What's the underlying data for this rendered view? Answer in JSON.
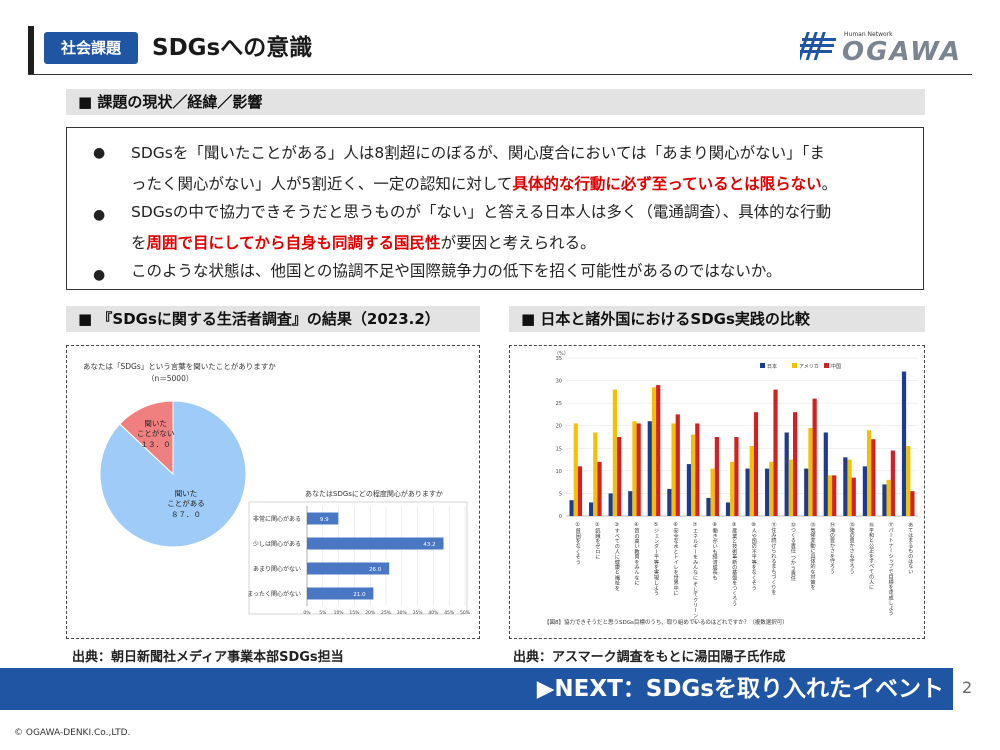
{
  "header": {
    "tag": "社会課題",
    "title": "SDGsへの意識",
    "logo_small": "Human Network",
    "logo_text": "OGAWA"
  },
  "section1": {
    "label": "■ 課題の現状／経緯／影響"
  },
  "bullets": [
    {
      "line1": "SDGsを「聞いたことがある」人は8割超にのぼるが、関心度合においては「あまり関心がない」「ま",
      "line2_pre": "ったく関心がない」人が5割近く、一定の認知に対して",
      "line2_red": "具体的な行動に必ず至っているとは限らない",
      "line2_post": "。"
    },
    {
      "line1": "SDGsの中で協力できそうだと思うものが「ない」と答える日本人は多く（電通調査）、具体的な行動",
      "line2_pre": "を",
      "line2_red": "周囲で目にしてから自身も同調する国民性",
      "line2_post": "が要因と考えられる。"
    },
    {
      "line1": "このような状態は、他国との協調不足や国際競争力の低下を招く可能性があるのではないか。"
    }
  ],
  "bullet_symbol": "●",
  "section2": {
    "label": "■ 『SDGsに関する生活者調査』の結果（2023.2）"
  },
  "section3": {
    "label": "■ 日本と諸外国におけるSDGs実践の比較"
  },
  "chart_data": [
    {
      "type": "pie",
      "title": "あなたは「SDGs」という言葉を聞いたことがありますか",
      "subtitle": "（n＝5000）",
      "slices": [
        {
          "label_line1": "聞いた",
          "label_line2": "ことがある",
          "value": 87.0,
          "value_label": "８７．０",
          "color": "#9ecbf7"
        },
        {
          "label_line1": "聞いた",
          "label_line2": "ことがない",
          "value": 13.0,
          "value_label": "１３．０",
          "color": "#f08080"
        }
      ]
    },
    {
      "type": "bar",
      "orientation": "horizontal",
      "title": "あなたはSDGsにどの程度関心がありますか",
      "categories": [
        "非常に関心がある",
        "少しは関心がある",
        "あまり関心がない",
        "まったく関心がない"
      ],
      "values": [
        9.9,
        43.2,
        26.0,
        21.0
      ],
      "value_labels": [
        "9.9",
        "43.2",
        "26.0",
        "21.0"
      ],
      "xlim": [
        0,
        50
      ],
      "ticks": [
        "0%",
        "5%",
        "10%",
        "15%",
        "20%",
        "25%",
        "30%",
        "35%",
        "40%",
        "45%",
        "50%"
      ],
      "color": "#4a77c4"
    },
    {
      "type": "bar",
      "title": "",
      "ylabel": "（%）",
      "ylim": [
        0,
        35
      ],
      "yticks": [
        "0",
        "5",
        "10",
        "15",
        "20",
        "25",
        "30",
        "35"
      ],
      "legend": [
        "日本",
        "アメリカ",
        "中国"
      ],
      "legend_position": "top-right",
      "colors": [
        "#1f3b8f",
        "#f2c200",
        "#d42020"
      ],
      "categories": [
        "①貧困をなくそう",
        "②飢餓をゼロに",
        "③すべての人に健康と福祉を",
        "④質の高い教育をみんなに",
        "⑤ジェンダー平等を実現しよう",
        "⑥安全な水とトイレを世界中に",
        "⑦エネルギーをみんなに そしてクリーンに",
        "⑧働きがいも経済成長も",
        "⑨産業と技術革新の基盤をつくろう",
        "⑩人や国の不平等をなくそう",
        "⑪住み続けられるまちづくりを",
        "⑫つくる責任 つかう責任",
        "⑬気候変動に具体的な対策を",
        "⑭海の豊かさを守ろう",
        "⑮陸の豊かさも守ろう",
        "⑯平和と公正をすべての人に",
        "⑰パートナーシップで目標を達成しよう",
        "あてはまるものはない"
      ],
      "series": [
        {
          "name": "日本",
          "values": [
            3.5,
            3.0,
            5.0,
            5.5,
            21.0,
            6.0,
            11.5,
            4.0,
            3.0,
            10.5,
            10.5,
            18.5,
            10.5,
            18.5,
            13.0,
            11.0,
            7.0,
            32.0
          ]
        },
        {
          "name": "アメリカ",
          "values": [
            20.5,
            18.5,
            28.0,
            21.0,
            28.5,
            20.5,
            18.0,
            10.5,
            12.0,
            15.5,
            12.0,
            12.5,
            19.5,
            9.0,
            12.5,
            19.0,
            8.0,
            15.5
          ]
        },
        {
          "name": "中国",
          "values": [
            11.0,
            12.0,
            17.5,
            20.5,
            29.0,
            22.5,
            20.5,
            17.5,
            17.5,
            23.0,
            28.0,
            23.0,
            26.0,
            9.0,
            8.5,
            17.0,
            14.5,
            5.5
          ]
        }
      ],
      "caption": "【図8】協力できそうだと思うSDGs目標のうち、取り組めているのはどれですか？（複数選択可）"
    }
  ],
  "sources": {
    "left": "出典：朝日新聞社メディア事業本部SDGs担当",
    "right": "出典：アスマーク調査をもとに湯田陽子氏作成"
  },
  "next_banner": "▶NEXT：SDGsを取り入れたイベント",
  "page_number": "2",
  "copyright": "© OGAWA-DENKI.Co.,LTD."
}
